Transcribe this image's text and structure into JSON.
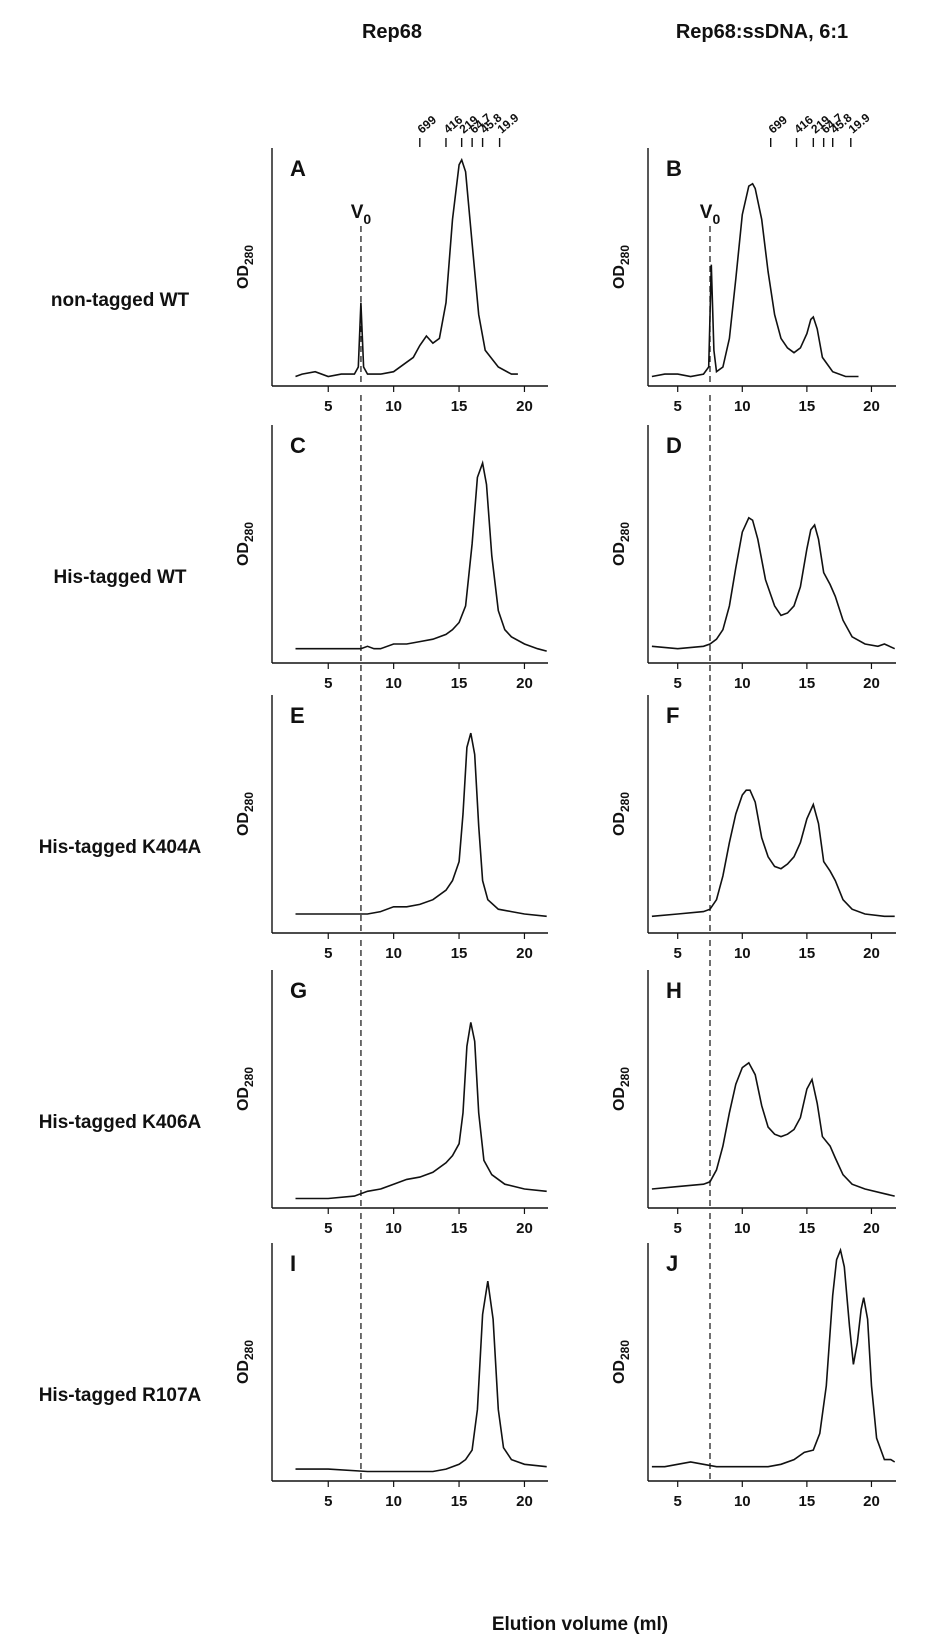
{
  "column_titles": [
    "Rep68",
    "Rep68:ssDNA, 6:1"
  ],
  "row_labels": [
    "non-tagged WT",
    "His-tagged WT",
    "His-tagged K404A",
    "His-tagged K406A",
    "His-tagged R107A"
  ],
  "xlabel": "Elution volume (ml)",
  "ylabel": {
    "text": "OD",
    "subscript": "280"
  },
  "v0": {
    "value": 7.5,
    "text": "V",
    "subscript": "0"
  },
  "chart_data": [
    {
      "type": "line",
      "panel": "A",
      "xlim": [
        0.7,
        21.8
      ],
      "xticks": [
        5,
        10,
        15,
        20
      ],
      "ylim": [
        0,
        100
      ],
      "mw_markers": {
        "labels": [
          699,
          416,
          219,
          64.7,
          45.8,
          19.9
        ],
        "x": [
          12.0,
          14.0,
          15.2,
          16.0,
          16.8,
          18.1
        ]
      },
      "x": [
        2.5,
        3,
        4,
        5,
        6,
        7,
        7.3,
        7.5,
        7.7,
        8,
        9,
        10,
        11,
        11.5,
        12,
        12.5,
        13,
        13.5,
        14,
        14.5,
        15,
        15.2,
        15.5,
        16,
        16.5,
        17,
        18,
        19,
        19.5
      ],
      "values": [
        4,
        5,
        6,
        4,
        5,
        5,
        8,
        35,
        8,
        5,
        5,
        6,
        10,
        12,
        17,
        21,
        18,
        20,
        35,
        70,
        93,
        95,
        90,
        60,
        30,
        15,
        8,
        5,
        5
      ]
    },
    {
      "type": "line",
      "panel": "B",
      "xlim": [
        2.7,
        21.9
      ],
      "xticks": [
        5,
        10,
        15,
        20
      ],
      "ylim": [
        0,
        100
      ],
      "mw_markers": {
        "labels": [
          699,
          416,
          219,
          64.7,
          45.8,
          19.9
        ],
        "x": [
          12.2,
          14.2,
          15.5,
          16.3,
          17.0,
          18.4
        ]
      },
      "x": [
        3,
        4,
        5,
        6,
        7,
        7.4,
        7.6,
        7.8,
        8,
        8.5,
        9,
        9.5,
        10,
        10.5,
        10.8,
        11,
        11.5,
        12,
        12.5,
        13,
        13.5,
        14,
        14.5,
        15,
        15.3,
        15.5,
        15.8,
        16.2,
        17,
        18,
        19
      ],
      "values": [
        4,
        5,
        5,
        4,
        5,
        8,
        51,
        15,
        6,
        8,
        20,
        45,
        72,
        84,
        85,
        83,
        70,
        48,
        30,
        20,
        16,
        14,
        16,
        22,
        28,
        29,
        24,
        12,
        6,
        4,
        4
      ]
    },
    {
      "type": "line",
      "panel": "C",
      "xlim": [
        0.7,
        21.8
      ],
      "xticks": [
        5,
        10,
        15,
        20
      ],
      "ylim": [
        0,
        100
      ],
      "x": [
        2.5,
        4,
        6,
        7.5,
        8,
        8.5,
        9,
        10,
        11,
        12,
        13,
        14,
        14.5,
        15,
        15.5,
        16,
        16.4,
        16.8,
        17.1,
        17.5,
        18,
        18.5,
        19,
        20,
        21,
        21.7
      ],
      "values": [
        6,
        6,
        6,
        6,
        7,
        6,
        6,
        8,
        8,
        9,
        10,
        12,
        14,
        17,
        24,
        50,
        78,
        84,
        75,
        45,
        22,
        14,
        11,
        8,
        6,
        5
      ]
    },
    {
      "type": "line",
      "panel": "D",
      "xlim": [
        2.7,
        21.9
      ],
      "xticks": [
        5,
        10,
        15,
        20
      ],
      "ylim": [
        0,
        100
      ],
      "x": [
        3,
        5,
        7,
        7.5,
        8,
        8.5,
        9,
        9.5,
        10,
        10.5,
        10.8,
        11.2,
        11.8,
        12.5,
        13,
        13.5,
        14,
        14.5,
        15,
        15.3,
        15.6,
        15.9,
        16.3,
        16.8,
        17.2,
        17.8,
        18.5,
        19.5,
        20.5,
        21,
        21.8
      ],
      "values": [
        7,
        6,
        7,
        8,
        10,
        14,
        24,
        40,
        55,
        61,
        60,
        52,
        35,
        24,
        20,
        21,
        24,
        32,
        48,
        56,
        58,
        52,
        38,
        33,
        28,
        18,
        11,
        8,
        7,
        8,
        6
      ]
    },
    {
      "type": "line",
      "panel": "E",
      "xlim": [
        0.7,
        21.8
      ],
      "xticks": [
        5,
        10,
        15,
        20
      ],
      "ylim": [
        0,
        100
      ],
      "x": [
        2.5,
        5,
        7,
        8,
        9,
        10,
        11,
        12,
        13,
        14,
        14.5,
        15,
        15.3,
        15.6,
        15.9,
        16.2,
        16.5,
        16.8,
        17.2,
        18,
        19,
        20,
        21.7
      ],
      "values": [
        8,
        8,
        8,
        8,
        9,
        11,
        11,
        12,
        14,
        18,
        22,
        30,
        50,
        78,
        84,
        75,
        45,
        22,
        14,
        10,
        9,
        8,
        7
      ]
    },
    {
      "type": "line",
      "panel": "F",
      "xlim": [
        2.7,
        21.9
      ],
      "xticks": [
        5,
        10,
        15,
        20
      ],
      "ylim": [
        0,
        100
      ],
      "x": [
        3,
        5,
        7,
        7.5,
        8,
        8.5,
        9,
        9.5,
        10,
        10.3,
        10.6,
        11,
        11.5,
        12,
        12.5,
        13,
        13.5,
        14,
        14.5,
        15,
        15.5,
        15.9,
        16.3,
        16.8,
        17.2,
        17.8,
        18.5,
        19.5,
        21,
        21.8
      ],
      "values": [
        7,
        8,
        9,
        10,
        14,
        24,
        38,
        50,
        58,
        60,
        60,
        55,
        40,
        32,
        28,
        27,
        29,
        32,
        38,
        48,
        54,
        46,
        30,
        26,
        22,
        14,
        10,
        8,
        7,
        7
      ]
    },
    {
      "type": "line",
      "panel": "G",
      "xlim": [
        0.7,
        21.8
      ],
      "xticks": [
        5,
        10,
        15,
        20
      ],
      "ylim": [
        0,
        100
      ],
      "x": [
        2.5,
        5,
        7,
        8,
        9,
        10,
        11,
        12,
        13,
        14,
        14.5,
        15,
        15.3,
        15.6,
        15.9,
        16.2,
        16.5,
        16.9,
        17.5,
        18.5,
        20,
        21.7
      ],
      "values": [
        4,
        4,
        5,
        7,
        8,
        10,
        12,
        13,
        15,
        19,
        22,
        27,
        40,
        68,
        78,
        70,
        40,
        20,
        14,
        10,
        8,
        7
      ]
    },
    {
      "type": "line",
      "panel": "H",
      "xlim": [
        2.7,
        21.9
      ],
      "xticks": [
        5,
        10,
        15,
        20
      ],
      "ylim": [
        0,
        100
      ],
      "x": [
        3,
        5,
        7,
        7.5,
        8,
        8.5,
        9,
        9.5,
        10,
        10.5,
        11,
        11.5,
        12,
        12.5,
        13,
        13.5,
        14,
        14.5,
        15,
        15.4,
        15.8,
        16.2,
        16.8,
        17.2,
        17.8,
        18.5,
        19.5,
        21,
        21.8
      ],
      "values": [
        8,
        9,
        10,
        11,
        16,
        26,
        40,
        52,
        59,
        61,
        56,
        43,
        34,
        31,
        30,
        31,
        33,
        38,
        50,
        54,
        44,
        30,
        26,
        21,
        14,
        10,
        8,
        6,
        5
      ]
    },
    {
      "type": "line",
      "panel": "I",
      "xlim": [
        0.7,
        21.8
      ],
      "xticks": [
        5,
        10,
        15,
        20
      ],
      "ylim": [
        0,
        100
      ],
      "x": [
        2.5,
        5,
        8,
        10,
        12,
        13,
        14,
        15,
        15.5,
        16,
        16.4,
        16.8,
        17.2,
        17.6,
        18,
        18.4,
        19,
        20,
        21.7
      ],
      "values": [
        5,
        5,
        4,
        4,
        4,
        4,
        5,
        7,
        9,
        13,
        30,
        70,
        84,
        68,
        30,
        14,
        9,
        7,
        6
      ]
    },
    {
      "type": "line",
      "panel": "J",
      "xlim": [
        2.7,
        21.9
      ],
      "xticks": [
        5,
        10,
        15,
        20
      ],
      "ylim": [
        0,
        100
      ],
      "x": [
        3,
        4,
        5,
        6,
        7,
        8,
        10,
        12,
        13,
        14,
        14.8,
        15.5,
        16,
        16.5,
        17,
        17.3,
        17.6,
        17.9,
        18.3,
        18.6,
        18.9,
        19.2,
        19.4,
        19.7,
        20,
        20.4,
        21,
        21.5,
        21.8
      ],
      "values": [
        6,
        6,
        7,
        8,
        7,
        6,
        6,
        6,
        7,
        9,
        12,
        13,
        20,
        40,
        78,
        93,
        97,
        90,
        65,
        49,
        58,
        72,
        77,
        68,
        40,
        18,
        9,
        9,
        8
      ]
    }
  ]
}
